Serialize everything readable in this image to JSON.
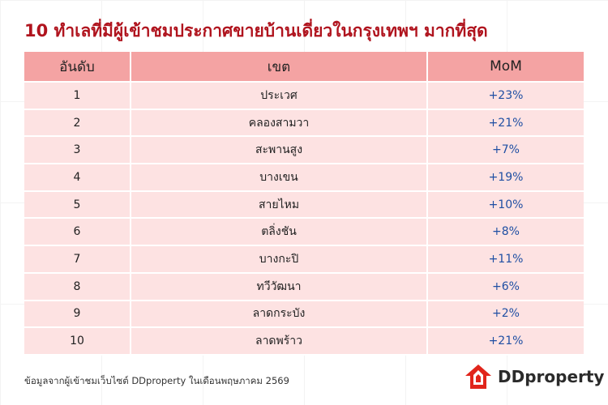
{
  "header": {
    "title": "10 ทำเลที่มีผู้เข้าชมประกาศขายบ้านเดี่ยวในกรุงเทพฯ มากที่สุด"
  },
  "table": {
    "columns": [
      "อันดับ",
      "เขต",
      "MoM"
    ],
    "rows": [
      [
        "1",
        "ประเวศ",
        "+23%"
      ],
      [
        "2",
        "คลองสามวา",
        "+21%"
      ],
      [
        "3",
        "สะพานสูง",
        "+7%"
      ],
      [
        "4",
        "บางเขน",
        "+19%"
      ],
      [
        "5",
        "สายไหม",
        "+10%"
      ],
      [
        "6",
        "ตลิ่งชัน",
        "+8%"
      ],
      [
        "7",
        "บางกะปิ",
        "+11%"
      ],
      [
        "8",
        "ทวีวัฒนา",
        "+6%"
      ],
      [
        "9",
        "ลาดกระบัง",
        "+2%"
      ],
      [
        "10",
        "ลาดพร้าว",
        "+21%"
      ]
    ]
  },
  "footer": {
    "source": "ข้อมูลจากผู้เข้าชมเว็บไซต์ DDproperty ในเดือนพฤษภาคม 2569",
    "logo": "DDproperty"
  }
}
